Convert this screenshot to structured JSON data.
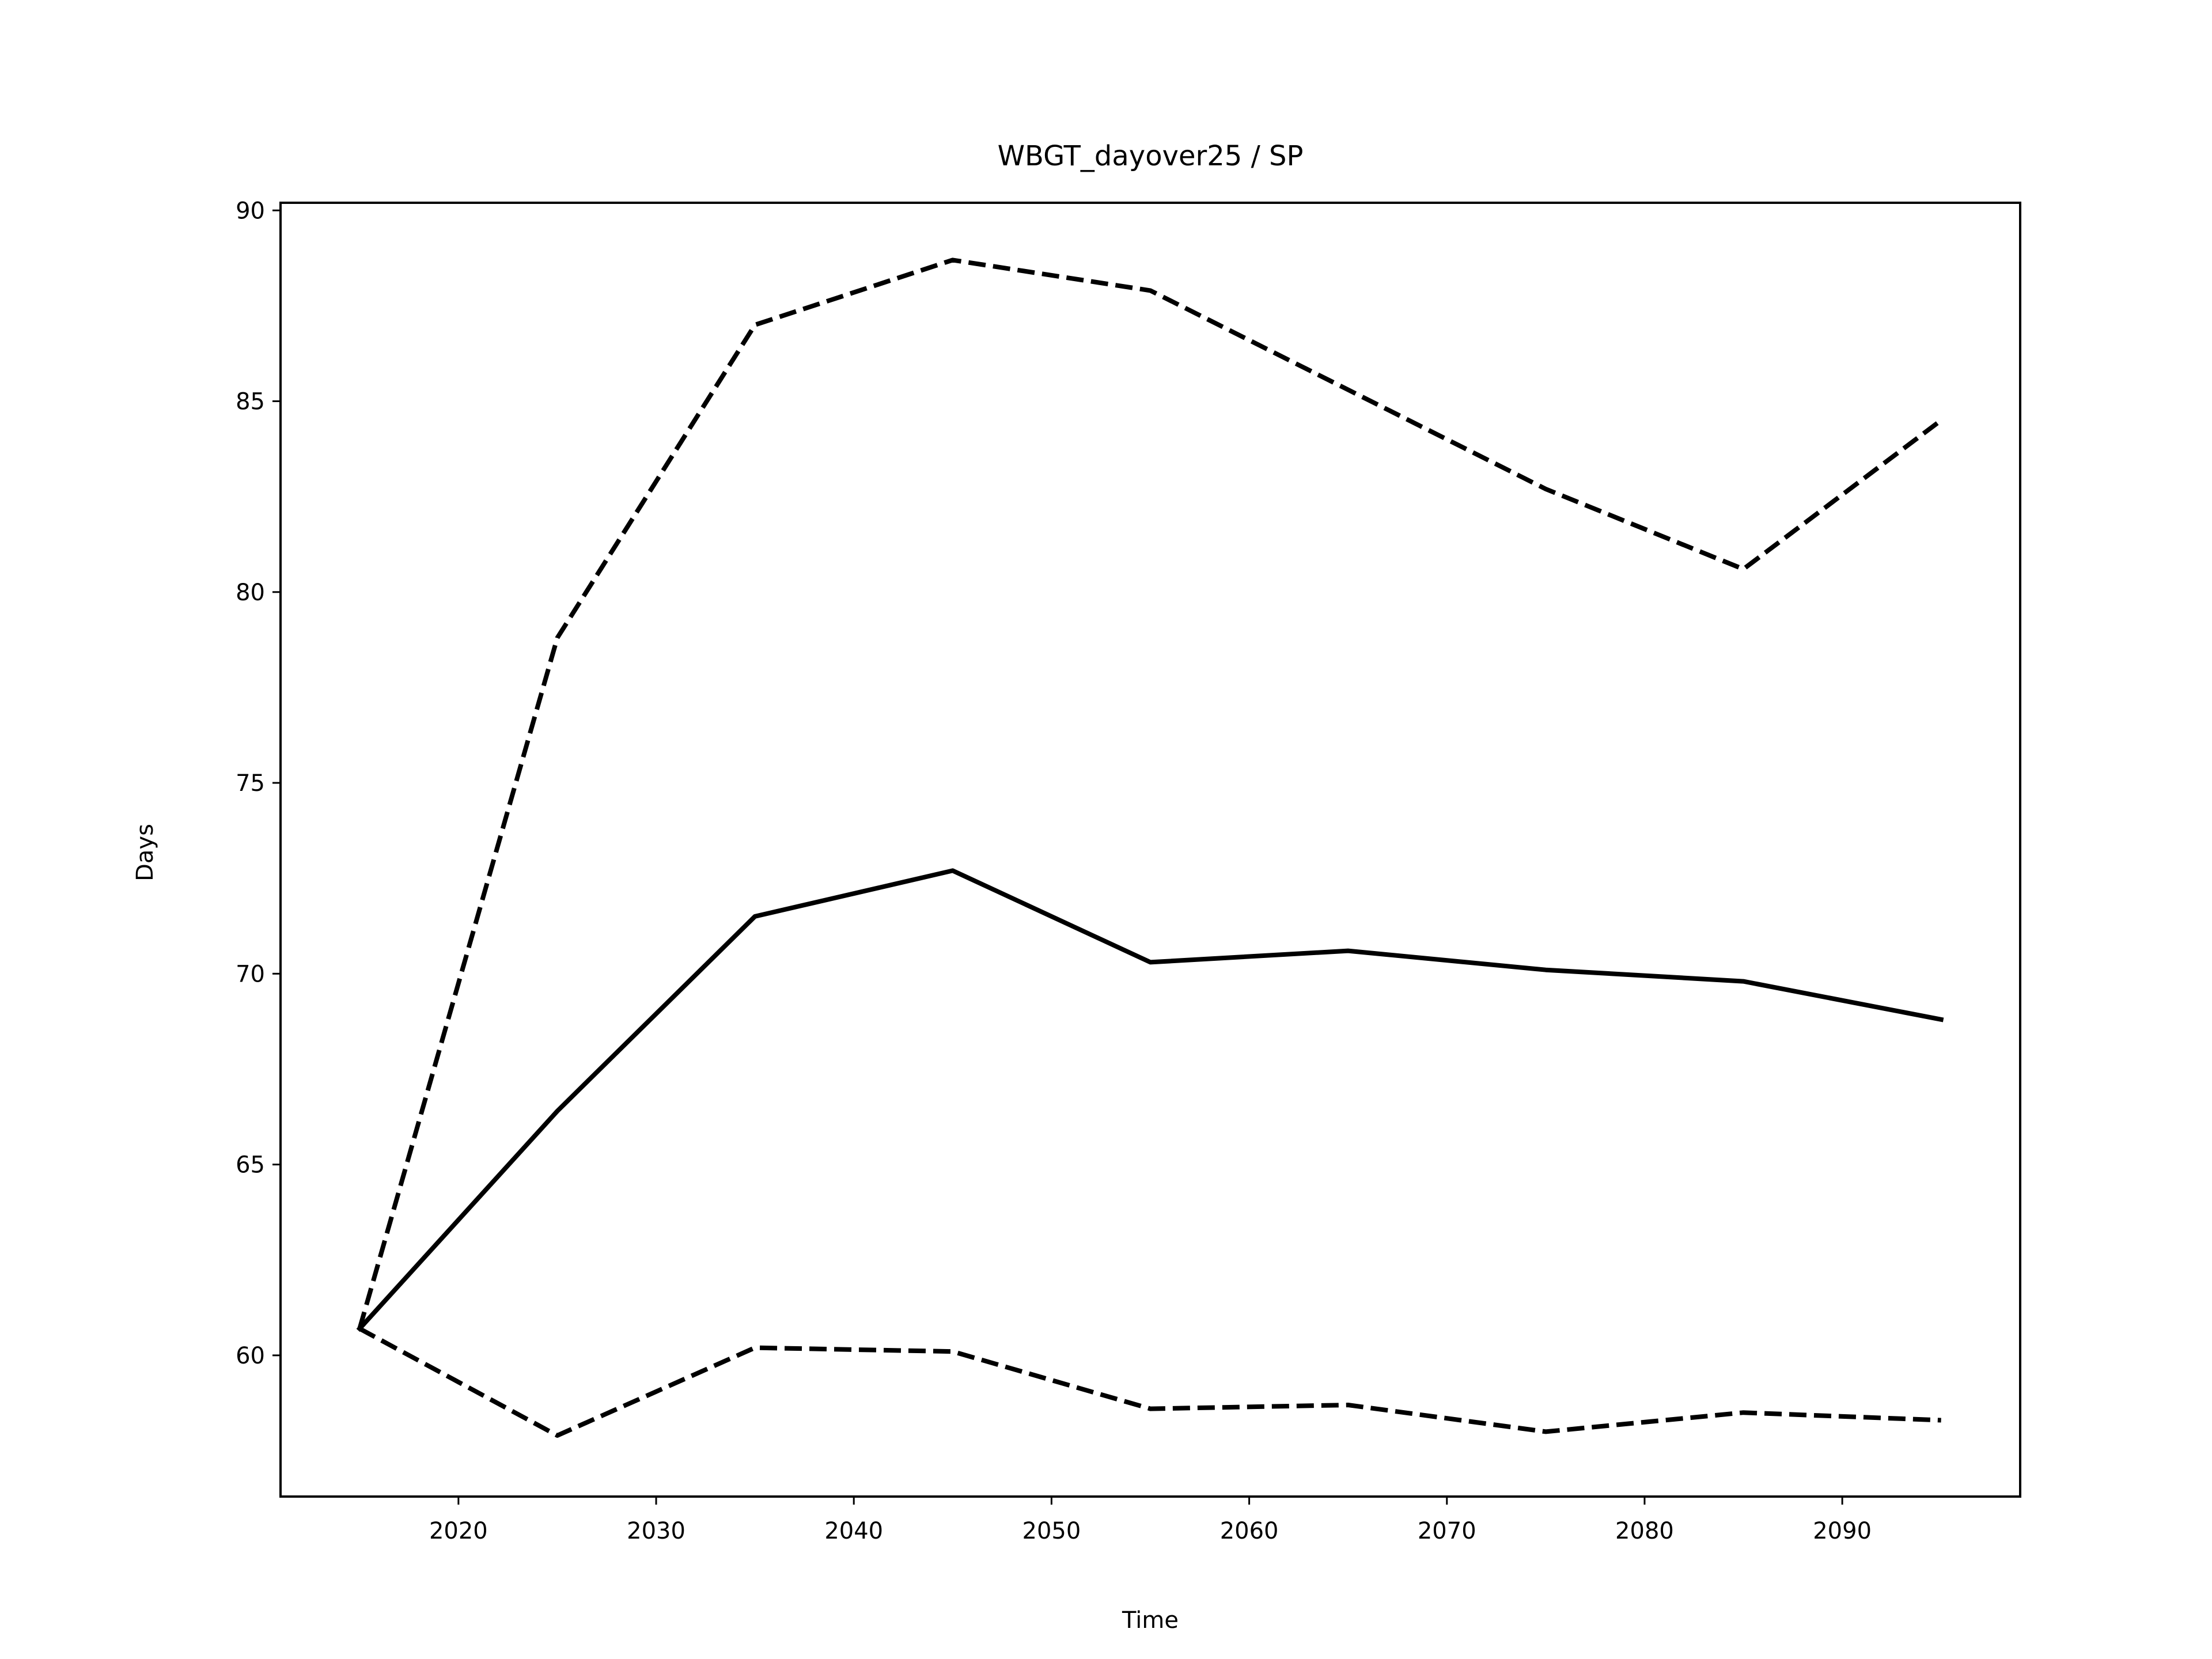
{
  "chart_data": {
    "type": "line",
    "title": "WBGT_dayover25 / SP",
    "xlabel": "Time",
    "ylabel": "Days",
    "xlim": [
      2011,
      2099
    ],
    "ylim": [
      56.3,
      90.2
    ],
    "x_ticks": [
      2020,
      2030,
      2040,
      2050,
      2060,
      2070,
      2080,
      2090
    ],
    "y_ticks": [
      60,
      65,
      70,
      75,
      80,
      85,
      90
    ],
    "grid": false,
    "legend": "none",
    "x": [
      2015,
      2025,
      2035,
      2045,
      2055,
      2065,
      2075,
      2085,
      2095
    ],
    "series": [
      {
        "style": "solid",
        "color": "#000000",
        "values": [
          60.7,
          66.4,
          71.5,
          72.7,
          70.3,
          70.6,
          70.1,
          69.8,
          68.8
        ]
      },
      {
        "style": "dashed",
        "color": "#000000",
        "values": [
          60.7,
          78.8,
          87.0,
          88.7,
          87.9,
          85.3,
          82.7,
          80.6,
          84.5
        ]
      },
      {
        "style": "dashed",
        "color": "#000000",
        "values": [
          60.7,
          57.9,
          60.2,
          60.1,
          58.6,
          58.7,
          58.0,
          58.5,
          58.3
        ]
      }
    ]
  }
}
